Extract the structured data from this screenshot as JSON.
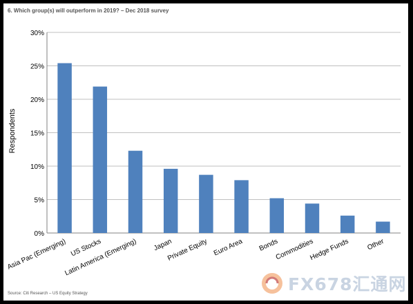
{
  "chart_data": {
    "type": "bar",
    "title": "6. Which group(s) will outperform in 2019? – Dec 2018 survey",
    "ylabel": "Respondents",
    "xlabel": "",
    "categories": [
      "Asia Pac (Emerging)",
      "US Stocks",
      "Latin America  (Emerging)",
      "Japan",
      "Private Equity",
      "Euro Area",
      "Bonds",
      "Commodities",
      "Hedge Funds",
      "Other"
    ],
    "values": [
      25.4,
      21.9,
      12.3,
      9.6,
      8.7,
      7.9,
      5.2,
      4.4,
      2.6,
      1.7
    ],
    "ylim": [
      0,
      30
    ],
    "yticks": [
      "0%",
      "5%",
      "10%",
      "15%",
      "20%",
      "25%",
      "30%"
    ],
    "bar_color": "#4f81bd",
    "grid": true,
    "legend": "none"
  },
  "source": "Source: Citi Research – US Equity Strategy",
  "watermark": {
    "text": "FX678",
    "cn_text": "汇通网"
  }
}
